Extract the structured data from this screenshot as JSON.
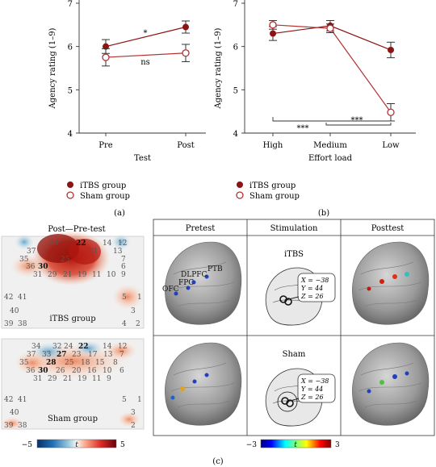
{
  "chart_data": [
    {
      "type": "line",
      "panel_label": "(a)",
      "xlabel": "Test",
      "ylabel": "Agency rating (1–9)",
      "ylim": [
        4,
        7
      ],
      "yticks": [
        "4",
        "5",
        "6",
        "7"
      ],
      "categories": [
        "Pre",
        "Post"
      ],
      "series": [
        {
          "name": "iTBS group",
          "marker": "filled",
          "values": [
            6.0,
            6.45
          ],
          "errors": [
            0.16,
            0.14
          ]
        },
        {
          "name": "Sham group",
          "marker": "open",
          "values": [
            5.75,
            5.85
          ],
          "errors": [
            0.2,
            0.2
          ]
        }
      ],
      "annotations": [
        "*",
        "ns"
      ]
    },
    {
      "type": "line",
      "panel_label": "(b)",
      "xlabel": "Effort load",
      "ylabel": "Agency rating (1–9)",
      "ylim": [
        4,
        7
      ],
      "yticks": [
        "4",
        "5",
        "6",
        "7"
      ],
      "categories": [
        "High",
        "Medium",
        "Low"
      ],
      "series": [
        {
          "name": "iTBS group",
          "marker": "filled",
          "values": [
            6.3,
            6.48,
            5.92
          ],
          "errors": [
            0.16,
            0.12,
            0.18
          ]
        },
        {
          "name": "Sham group",
          "marker": "open",
          "values": [
            6.5,
            6.42,
            4.48
          ],
          "errors": [
            0.1,
            0.1,
            0.2
          ]
        }
      ],
      "annotations": [
        "***",
        "***"
      ]
    }
  ],
  "panel_c": {
    "label": "(c)",
    "heatmap_title": "Post—Pre-test",
    "itbs_label": "iTBS group",
    "sham_label": "Sham group",
    "colorbar_left": {
      "min": "−5",
      "mid": "t",
      "max": "5"
    },
    "colorbar_right": {
      "min": "−3",
      "mid": "t",
      "max": "3"
    },
    "col_headers": [
      "Pretest",
      "Stimulation",
      "Posttest"
    ],
    "stim_itbs": "iTBS",
    "stim_sham": "Sham",
    "coords": {
      "x": "X = −38",
      "y": "Y = 44",
      "z": "Z = 26"
    },
    "regions": [
      "PTB",
      "DLPFC",
      "FPC",
      "OFC"
    ],
    "channels_itbs": {
      "r1": [
        "24",
        "22",
        "14",
        "12"
      ],
      "r2": [
        "37",
        "21",
        "13"
      ],
      "r3": [
        "35",
        "25",
        "7"
      ],
      "r4": [
        "36",
        "30",
        "6"
      ],
      "r5": [
        "31",
        "29",
        "21",
        "19",
        "11",
        "10",
        "9"
      ],
      "side": [
        "42",
        "41",
        "40",
        "39",
        "38",
        "5",
        "3",
        "4",
        "2",
        "1"
      ]
    },
    "channels_sham": {
      "r1": [
        "34",
        "32",
        "24",
        "22",
        "14",
        "12"
      ],
      "r2": [
        "37",
        "33",
        "27",
        "23",
        "17",
        "13",
        "7"
      ],
      "r3": [
        "35",
        "28",
        "25",
        "18",
        "15",
        "8"
      ],
      "r4": [
        "36",
        "30",
        "26",
        "20",
        "16",
        "10",
        "6"
      ],
      "r5": [
        "31",
        "29",
        "21",
        "19",
        "11",
        "9"
      ],
      "side": [
        "42",
        "41",
        "40",
        "39",
        "38",
        "5",
        "1",
        "3",
        "2"
      ]
    },
    "colors": {
      "itbs": "#8b1414",
      "sham": "#b43232",
      "bg": "#f0f0f0"
    }
  }
}
